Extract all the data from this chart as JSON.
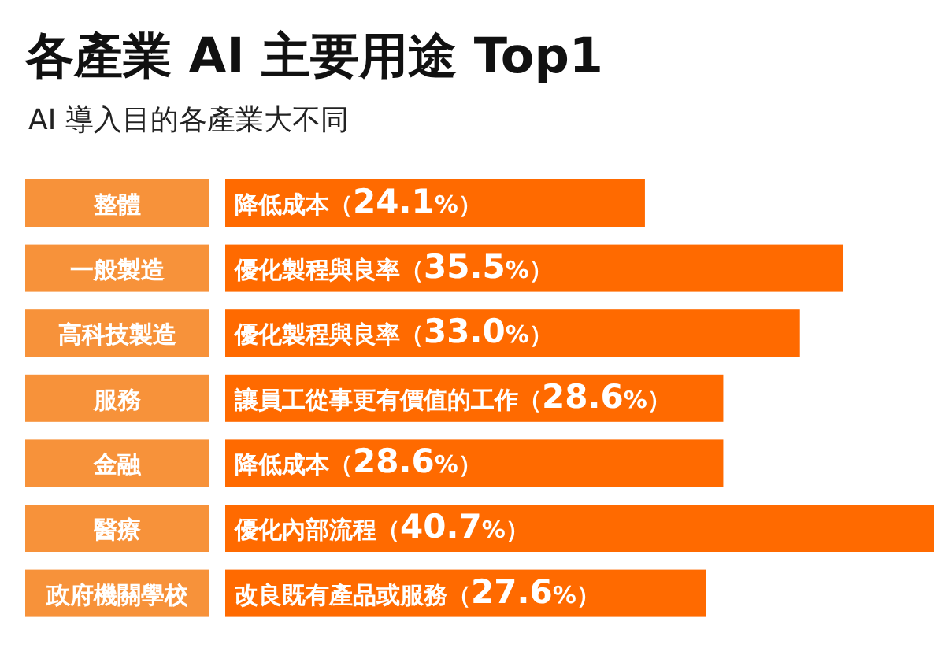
{
  "chart_data": {
    "type": "bar",
    "orientation": "horizontal",
    "title": "各產業 AI 主要用途 Top1",
    "subtitle": "AI 導入目的各產業大不同",
    "categories": [
      "整體",
      "一般製造",
      "高科技製造",
      "服務",
      "金融",
      "醫療",
      "政府機關學校"
    ],
    "values": [
      24.1,
      35.5,
      33.0,
      28.6,
      28.6,
      40.7,
      27.6
    ],
    "value_labels": [
      "降低成本（24.1%）",
      "優化製程與良率（35.5%）",
      "優化製程與良率（33.0%）",
      "讓員工從事更有價值的工作（28.6%）",
      "降低成本（28.6%）",
      "優化內部流程（40.7%）",
      "改良既有產品或服務（27.6%）"
    ],
    "color": "#ff6a00"
  }
}
